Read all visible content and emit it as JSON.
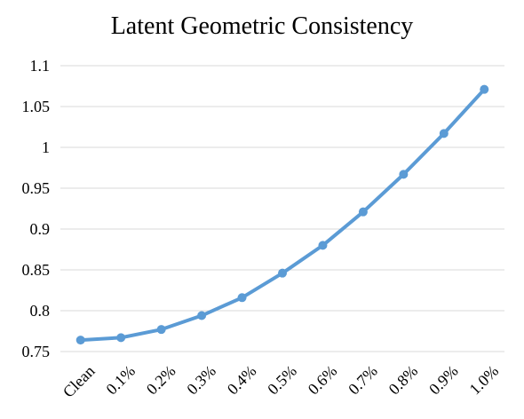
{
  "chart_data": {
    "type": "line",
    "title": "Latent Geometric Consistency",
    "xlabel": "",
    "ylabel": "",
    "categories": [
      "Clean",
      "0.1%",
      "0.2%",
      "0.3%",
      "0.4%",
      "0.5%",
      "0.6%",
      "0.7%",
      "0.8%",
      "0.9%",
      "1.0%"
    ],
    "series": [
      {
        "values": [
          0.764,
          0.767,
          0.777,
          0.794,
          0.816,
          0.846,
          0.88,
          0.921,
          0.967,
          1.017,
          1.071
        ]
      }
    ],
    "ylim": [
      0.75,
      1.1
    ],
    "yticks": [
      0.75,
      0.8,
      0.85,
      0.9,
      0.95,
      1,
      1.05,
      1.1
    ],
    "ytick_labels": [
      "0.75",
      "0.8",
      "0.85",
      "0.9",
      "0.95",
      "1",
      "1.05",
      "1.1"
    ],
    "grid": "horizontal",
    "legend": "none",
    "line_color": "#5b9bd5",
    "grid_color": "#d9d9d9"
  }
}
